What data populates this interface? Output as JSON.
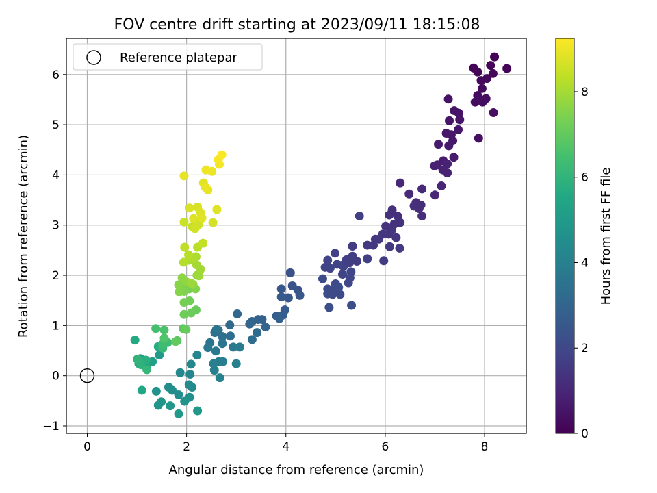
{
  "chart_data": {
    "type": "scatter",
    "title": "FOV centre drift starting at 2023/09/11 18:15:08",
    "xlabel": "Angular distance from reference (arcmin)",
    "ylabel": "Rotation from reference (arcmin)",
    "xlim": [
      -0.42,
      8.84
    ],
    "ylim": [
      -1.15,
      6.72
    ],
    "xticks": [
      0,
      2,
      4,
      6,
      8
    ],
    "yticks": [
      -1,
      0,
      1,
      2,
      3,
      4,
      5,
      6
    ],
    "grid": true,
    "colormap": "viridis",
    "colorbar": {
      "label": "Hours from first FF file",
      "min": 0,
      "max": 9.25,
      "ticks": [
        0,
        2,
        4,
        6,
        8
      ]
    },
    "legend": {
      "placement": "upper-left",
      "entries": [
        "Reference platepar"
      ]
    },
    "reference_point": {
      "x": 0,
      "y": 0
    },
    "point_fields": [
      "x",
      "y",
      "hours"
    ],
    "points": [
      [
        8.2,
        6.35,
        0.05
      ],
      [
        8.12,
        6.18,
        0.05
      ],
      [
        8.45,
        6.12,
        0.08
      ],
      [
        7.78,
        6.13,
        0.1
      ],
      [
        7.86,
        6.05,
        0.12
      ],
      [
        8.17,
        6.02,
        0.15
      ],
      [
        7.93,
        5.88,
        0.18
      ],
      [
        8.05,
        5.92,
        0.2
      ],
      [
        7.95,
        5.72,
        0.22
      ],
      [
        7.86,
        5.58,
        0.25
      ],
      [
        7.81,
        5.45,
        0.28
      ],
      [
        8.03,
        5.52,
        0.3
      ],
      [
        7.96,
        5.45,
        0.32
      ],
      [
        7.87,
        5.51,
        0.34
      ],
      [
        8.18,
        5.24,
        0.36
      ],
      [
        7.88,
        4.73,
        0.4
      ],
      [
        7.27,
        5.51,
        0.45
      ],
      [
        7.39,
        5.28,
        0.48
      ],
      [
        7.48,
        5.23,
        0.5
      ],
      [
        7.5,
        5.1,
        0.52
      ],
      [
        7.29,
        5.08,
        0.54
      ],
      [
        7.47,
        4.9,
        0.56
      ],
      [
        7.23,
        4.83,
        0.58
      ],
      [
        7.33,
        4.8,
        0.6
      ],
      [
        7.36,
        4.68,
        0.62
      ],
      [
        7.28,
        4.58,
        0.64
      ],
      [
        7.07,
        4.61,
        0.66
      ],
      [
        7.38,
        4.35,
        0.72
      ],
      [
        7.17,
        4.28,
        0.76
      ],
      [
        7.05,
        4.2,
        0.8
      ],
      [
        6.99,
        4.18,
        0.84
      ],
      [
        7.25,
        4.22,
        0.86
      ],
      [
        7.16,
        4.1,
        0.9
      ],
      [
        7.25,
        4.04,
        0.92
      ],
      [
        7.13,
        3.78,
        0.96
      ],
      [
        7.0,
        3.6,
        1.0
      ],
      [
        6.3,
        3.84,
        1.05
      ],
      [
        6.74,
        3.72,
        1.08
      ],
      [
        6.48,
        3.62,
        1.12
      ],
      [
        6.62,
        3.45,
        1.15
      ],
      [
        6.72,
        3.4,
        1.18
      ],
      [
        6.68,
        3.33,
        1.2
      ],
      [
        6.74,
        3.18,
        1.22
      ],
      [
        6.58,
        3.38,
        1.24
      ],
      [
        6.14,
        3.3,
        1.26
      ],
      [
        6.25,
        3.18,
        1.28
      ],
      [
        6.08,
        3.2,
        1.3
      ],
      [
        6.3,
        3.05,
        1.32
      ],
      [
        6.18,
        3.02,
        1.34
      ],
      [
        6.01,
        2.98,
        1.36
      ],
      [
        6.13,
        2.9,
        1.38
      ],
      [
        6.07,
        2.82,
        1.4
      ],
      [
        6.22,
        2.75,
        1.42
      ],
      [
        5.95,
        2.82,
        1.44
      ],
      [
        5.87,
        2.72,
        1.46
      ],
      [
        5.8,
        2.72,
        1.48
      ],
      [
        5.64,
        2.6,
        1.5
      ],
      [
        5.76,
        2.6,
        1.52
      ],
      [
        6.09,
        2.57,
        1.54
      ],
      [
        6.29,
        2.54,
        1.56
      ],
      [
        5.97,
        2.29,
        1.6
      ],
      [
        5.34,
        2.58,
        1.62
      ],
      [
        5.34,
        2.38,
        1.64
      ],
      [
        5.43,
        2.28,
        1.66
      ],
      [
        5.28,
        2.25,
        1.68
      ],
      [
        5.22,
        2.31,
        1.7
      ],
      [
        5.48,
        3.18,
        1.72
      ],
      [
        5.64,
        2.33,
        1.74
      ],
      [
        5.16,
        2.18,
        1.76
      ],
      [
        5.03,
        2.22,
        1.78
      ],
      [
        4.99,
        2.44,
        1.8
      ],
      [
        5.13,
        2.2,
        1.82
      ],
      [
        4.84,
        2.3,
        1.84
      ],
      [
        4.79,
        2.16,
        1.86
      ],
      [
        4.89,
        2.14,
        1.88
      ],
      [
        5.14,
        2.02,
        1.9
      ],
      [
        5.29,
        1.95,
        1.92
      ],
      [
        5.31,
        2.07,
        1.94
      ],
      [
        5.26,
        1.85,
        1.96
      ],
      [
        5.0,
        1.83,
        1.98
      ],
      [
        5.03,
        1.76,
        2.0
      ],
      [
        4.97,
        1.7,
        2.02
      ],
      [
        4.94,
        1.62,
        2.04
      ],
      [
        5.09,
        1.62,
        2.06
      ],
      [
        4.84,
        1.73,
        2.08
      ],
      [
        4.74,
        1.93,
        2.1
      ],
      [
        4.92,
        1.71,
        2.12
      ],
      [
        4.84,
        1.63,
        2.14
      ],
      [
        5.06,
        1.76,
        2.16
      ],
      [
        5.32,
        1.4,
        2.2
      ],
      [
        4.87,
        1.36,
        2.22
      ],
      [
        4.09,
        2.05,
        2.3
      ],
      [
        4.13,
        1.79,
        2.35
      ],
      [
        4.24,
        1.71,
        2.4
      ],
      [
        3.91,
        1.73,
        2.45
      ],
      [
        4.28,
        1.6,
        2.5
      ],
      [
        4.05,
        1.55,
        2.55
      ],
      [
        3.91,
        1.57,
        2.6
      ],
      [
        3.98,
        1.31,
        2.65
      ],
      [
        3.94,
        1.21,
        2.7
      ],
      [
        3.81,
        1.19,
        2.75
      ],
      [
        3.87,
        1.14,
        2.8
      ],
      [
        3.52,
        1.12,
        2.85
      ],
      [
        3.44,
        1.12,
        2.9
      ],
      [
        3.59,
        0.97,
        2.95
      ],
      [
        3.32,
        1.08,
        3.0
      ],
      [
        3.27,
        1.03,
        3.05
      ],
      [
        3.02,
        1.23,
        3.1
      ],
      [
        2.87,
        1.01,
        3.15
      ],
      [
        3.42,
        0.86,
        3.2
      ],
      [
        3.32,
        0.72,
        3.25
      ],
      [
        2.88,
        0.79,
        3.3
      ],
      [
        2.64,
        0.91,
        3.35
      ],
      [
        2.72,
        0.78,
        3.4
      ],
      [
        2.57,
        0.86,
        3.45
      ],
      [
        2.6,
        0.92,
        3.5
      ],
      [
        2.47,
        0.66,
        3.55
      ],
      [
        2.72,
        0.64,
        3.6
      ],
      [
        2.43,
        0.56,
        3.65
      ],
      [
        2.59,
        0.49,
        3.7
      ],
      [
        2.94,
        0.57,
        3.75
      ],
      [
        3.07,
        0.57,
        3.8
      ],
      [
        2.65,
        0.28,
        3.85
      ],
      [
        2.73,
        0.28,
        3.9
      ],
      [
        2.54,
        0.24,
        3.95
      ],
      [
        2.56,
        0.11,
        4.0
      ],
      [
        3.0,
        0.24,
        4.05
      ],
      [
        2.67,
        -0.04,
        4.1
      ],
      [
        2.21,
        0.41,
        4.15
      ],
      [
        2.09,
        0.23,
        4.2
      ],
      [
        2.07,
        0.03,
        4.25
      ],
      [
        1.87,
        0.06,
        4.3
      ],
      [
        2.05,
        -0.18,
        4.35
      ],
      [
        2.11,
        -0.23,
        4.4
      ],
      [
        1.64,
        -0.23,
        4.45
      ],
      [
        1.71,
        -0.29,
        4.5
      ],
      [
        1.84,
        -0.38,
        4.55
      ],
      [
        2.06,
        -0.43,
        4.6
      ],
      [
        1.39,
        -0.31,
        4.65
      ],
      [
        1.96,
        -0.51,
        4.7
      ],
      [
        1.49,
        -0.52,
        4.75
      ],
      [
        1.43,
        -0.59,
        4.8
      ],
      [
        1.67,
        -0.6,
        4.85
      ],
      [
        2.22,
        -0.7,
        4.9
      ],
      [
        1.84,
        -0.76,
        4.95
      ],
      [
        1.45,
        0.41,
        5.0
      ],
      [
        1.07,
        0.34,
        5.1
      ],
      [
        1.31,
        0.28,
        5.2
      ],
      [
        1.04,
        0.24,
        5.3
      ],
      [
        1.19,
        0.17,
        5.4
      ],
      [
        1.1,
        -0.29,
        5.5
      ],
      [
        0.96,
        0.71,
        5.6
      ],
      [
        1.43,
        0.58,
        5.7
      ],
      [
        1.18,
        0.31,
        5.8
      ],
      [
        1.08,
        0.22,
        5.9
      ],
      [
        1.01,
        0.33,
        6.0
      ],
      [
        1.2,
        0.12,
        6.1
      ],
      [
        1.52,
        0.55,
        6.2
      ],
      [
        1.62,
        0.66,
        6.3
      ],
      [
        1.52,
        0.63,
        6.4
      ],
      [
        1.38,
        0.94,
        6.5
      ],
      [
        1.55,
        0.91,
        6.6
      ],
      [
        1.55,
        0.75,
        6.7
      ],
      [
        1.81,
        0.7,
        6.8
      ],
      [
        1.93,
        0.94,
        6.9
      ],
      [
        1.78,
        0.68,
        7.0
      ],
      [
        1.99,
        0.92,
        7.05
      ],
      [
        2.19,
        1.31,
        7.1
      ],
      [
        2.09,
        1.25,
        7.15
      ],
      [
        1.95,
        1.22,
        7.2
      ],
      [
        2.06,
        1.49,
        7.25
      ],
      [
        1.95,
        1.46,
        7.3
      ],
      [
        2.05,
        1.73,
        7.35
      ],
      [
        1.88,
        1.76,
        7.4
      ],
      [
        1.95,
        1.68,
        7.45
      ],
      [
        2.18,
        1.73,
        7.5
      ],
      [
        1.85,
        1.67,
        7.55
      ],
      [
        1.84,
        1.81,
        7.6
      ],
      [
        1.91,
        1.95,
        7.65
      ],
      [
        2.0,
        1.87,
        7.7
      ],
      [
        2.13,
        1.82,
        7.75
      ],
      [
        2.21,
        2.0,
        7.8
      ],
      [
        2.09,
        1.84,
        7.85
      ],
      [
        2.25,
        1.99,
        7.9
      ],
      [
        2.28,
        2.12,
        7.95
      ],
      [
        2.2,
        2.21,
        8.0
      ],
      [
        2.05,
        2.3,
        8.05
      ],
      [
        2.19,
        2.37,
        8.1
      ],
      [
        2.12,
        2.33,
        8.15
      ],
      [
        1.94,
        2.26,
        8.2
      ],
      [
        2.04,
        2.41,
        8.25
      ],
      [
        2.22,
        2.56,
        8.3
      ],
      [
        1.96,
        2.56,
        8.35
      ],
      [
        2.33,
        2.64,
        8.4
      ],
      [
        2.11,
        2.97,
        8.45
      ],
      [
        1.95,
        3.06,
        8.5
      ],
      [
        2.24,
        3.01,
        8.55
      ],
      [
        2.17,
        2.93,
        8.6
      ],
      [
        2.53,
        3.05,
        8.65
      ],
      [
        2.22,
        3.36,
        8.7
      ],
      [
        2.06,
        3.34,
        8.72
      ],
      [
        2.28,
        3.25,
        8.75
      ],
      [
        2.14,
        3.13,
        8.78
      ],
      [
        2.61,
        3.31,
        8.8
      ],
      [
        2.31,
        3.14,
        8.82
      ],
      [
        2.34,
        3.84,
        8.85
      ],
      [
        1.95,
        3.98,
        8.9
      ],
      [
        2.43,
        3.7,
        8.93
      ],
      [
        2.38,
        3.75,
        8.96
      ],
      [
        2.51,
        4.07,
        9.0
      ],
      [
        2.39,
        4.1,
        9.05
      ],
      [
        2.66,
        4.21,
        9.1
      ],
      [
        2.64,
        4.3,
        9.15
      ],
      [
        2.71,
        4.4,
        9.2
      ]
    ]
  }
}
